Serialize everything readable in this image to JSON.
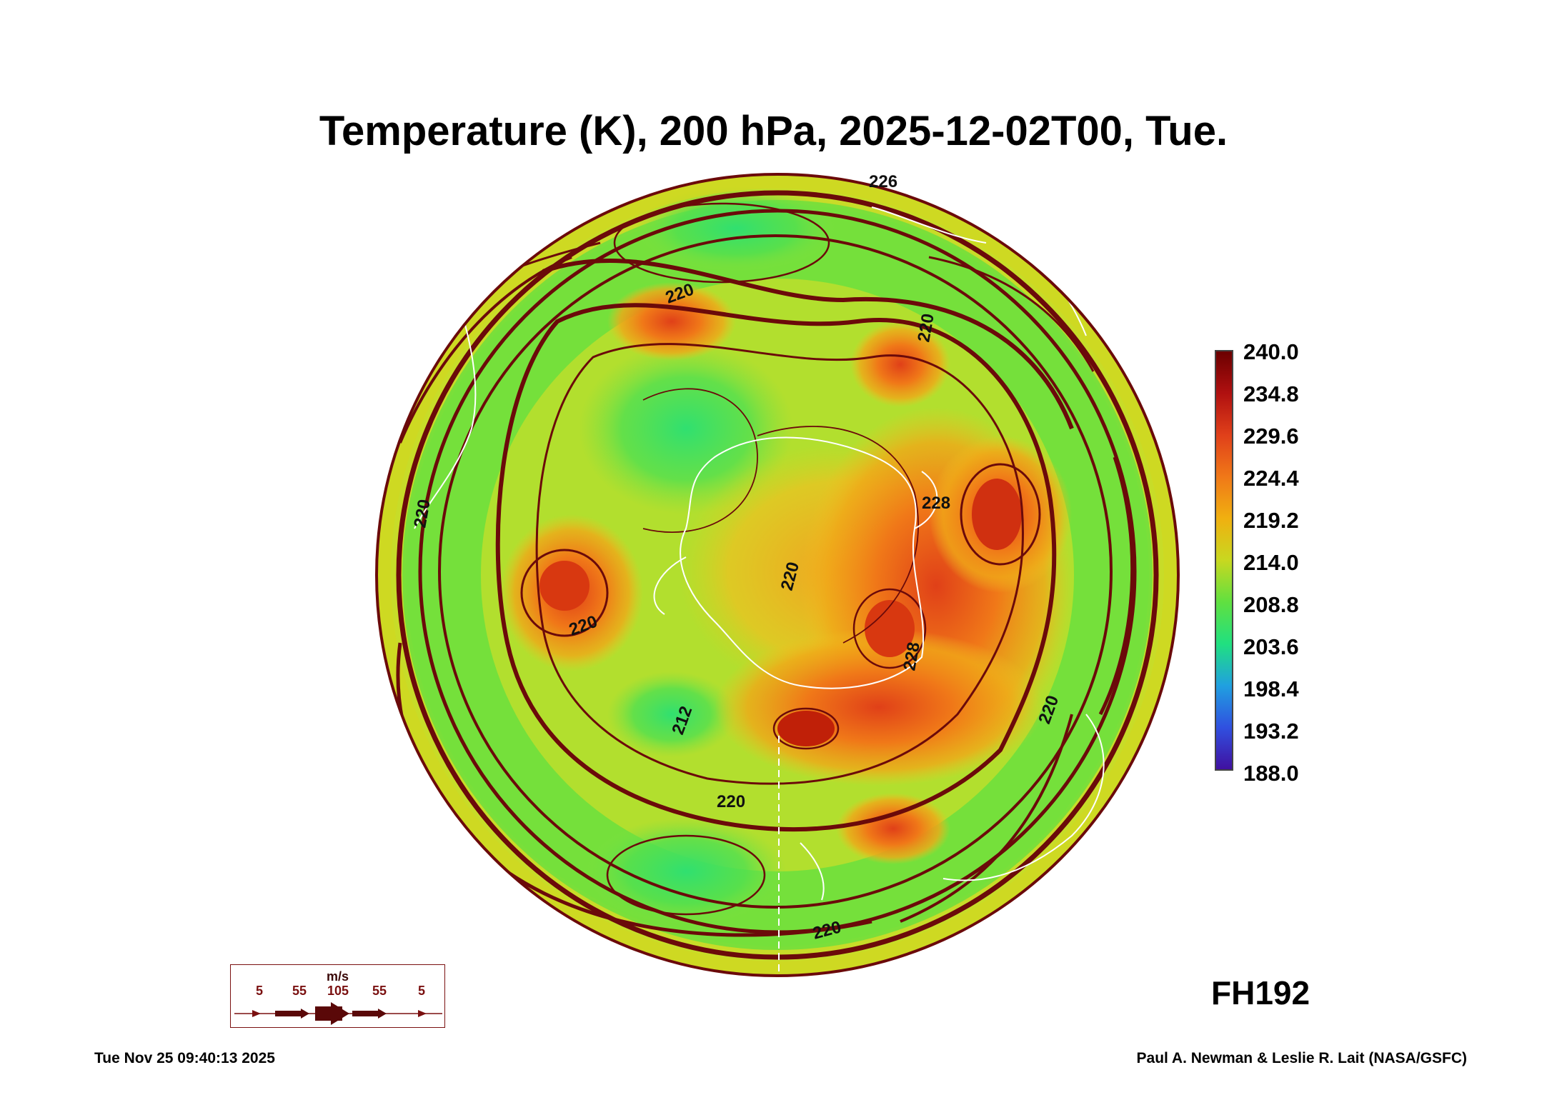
{
  "title": "Temperature (K), 200 hPa, 2025-12-02T00, Tue.",
  "colorbar": {
    "labels": [
      "240.0",
      "234.8",
      "229.6",
      "224.4",
      "219.2",
      "214.0",
      "208.8",
      "203.6",
      "198.4",
      "193.2",
      "188.0"
    ],
    "colors": [
      "#6b0000",
      "#b01010",
      "#e0401a",
      "#f07818",
      "#f0b010",
      "#c8d820",
      "#60e040",
      "#20e080",
      "#20a0e0",
      "#3050e0",
      "#4010a0"
    ]
  },
  "contour_labels": [
    "226",
    "220",
    "228",
    "220",
    "220",
    "228",
    "220",
    "212",
    "220",
    "220",
    "220",
    "220"
  ],
  "forecast_hour": "FH192",
  "footer": {
    "timestamp": "Tue Nov 25 09:40:13 2025",
    "credit": "Paul A. Newman & Leslie R. Lait (NASA/GSFC)"
  },
  "wind_legend": {
    "unit": "m/s",
    "values": [
      "5",
      "55",
      "105",
      "55",
      "5"
    ]
  }
}
